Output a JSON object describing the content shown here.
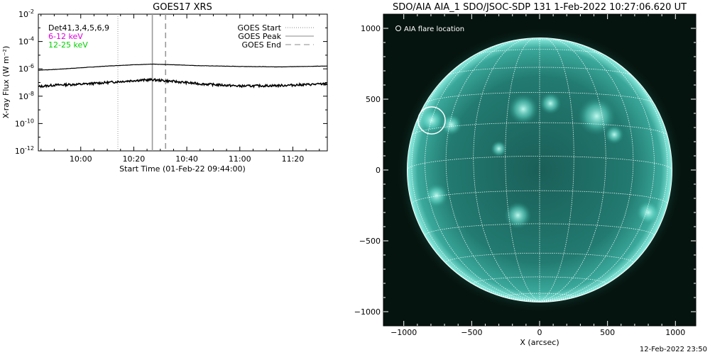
{
  "chart_data": [
    {
      "type": "line",
      "title": "GOES17 XRS",
      "xlabel": "Start Time (01-Feb-22 09:44:00)",
      "ylabel": "X-ray Flux (W m⁻²)",
      "yscale": "log",
      "ylim": [
        1e-12,
        0.01
      ],
      "xlim": [
        "09:44",
        "11:33"
      ],
      "x_ticks": [
        "10:00",
        "10:20",
        "10:40",
        "11:00",
        "11:20"
      ],
      "y_ticks": [
        {
          "base": "10",
          "exp": "-2",
          "value": 0.01
        },
        {
          "base": "10",
          "exp": "-4",
          "value": 0.0001
        },
        {
          "base": "10",
          "exp": "-6",
          "value": 1e-06
        },
        {
          "base": "10",
          "exp": "-8",
          "value": 1e-08
        },
        {
          "base": "10",
          "exp": "-10",
          "value": 1e-10
        },
        {
          "base": "10",
          "exp": "-12",
          "value": 1e-12
        }
      ],
      "legend_detectors": "Det41,3,4,5,6,9",
      "legend_bands": [
        {
          "name": "6-12 keV",
          "color": "#e000e0"
        },
        {
          "name": "12-25 keV",
          "color": "#00d000"
        }
      ],
      "legend_lines": [
        {
          "name": "GOES Start",
          "style": "dotted",
          "time": "10:14"
        },
        {
          "name": "GOES Peak",
          "style": "solid",
          "time": "10:27"
        },
        {
          "name": "GOES End",
          "style": "dashed",
          "time": "10:32"
        }
      ],
      "legend_position": "top-right",
      "series": [
        {
          "band": "long",
          "x": [
            "09:44",
            "09:50",
            "10:00",
            "10:10",
            "10:20",
            "10:27",
            "10:35",
            "10:45",
            "11:00",
            "11:15",
            "11:33"
          ],
          "y": [
            8e-07,
            9e-07,
            1.2e-06,
            1.6e-06,
            2e-06,
            2.2e-06,
            2e-06,
            1.7e-06,
            1.5e-06,
            1.4e-06,
            1.6e-06
          ]
        },
        {
          "band": "short",
          "x": [
            "09:44",
            "09:50",
            "10:00",
            "10:10",
            "10:20",
            "10:27",
            "10:35",
            "10:45",
            "11:00",
            "11:15",
            "11:33"
          ],
          "y": [
            5e-08,
            6.5e-08,
            7.5e-08,
            1e-07,
            1.4e-07,
            1.6e-07,
            1.2e-07,
            8e-08,
            5.5e-08,
            6e-08,
            8e-08
          ]
        }
      ]
    },
    {
      "type": "image",
      "title": "SDO/AIA AIA_1 SDO/JSOC-SDP 131  1-Feb-2022 10:27:06.620 UT",
      "xlabel": "X (arcsec)",
      "xlim": [
        -1150,
        1150
      ],
      "ylim": [
        -1100,
        1100
      ],
      "x_ticks": [
        -1000,
        -500,
        0,
        500,
        1000
      ],
      "y_ticks": [
        1000,
        500,
        0,
        -500,
        -1000
      ],
      "legend_label": "AIA flare location",
      "flare_location": {
        "x": -795,
        "y": 350,
        "radius": 100
      },
      "disk_radius_arcsec": 975,
      "colors": {
        "disk": "#1f6f66",
        "limb": "#7fe8dc",
        "background": "#06140f"
      }
    }
  ],
  "footer": {
    "timestamp": "12-Feb-2022 23:50"
  }
}
